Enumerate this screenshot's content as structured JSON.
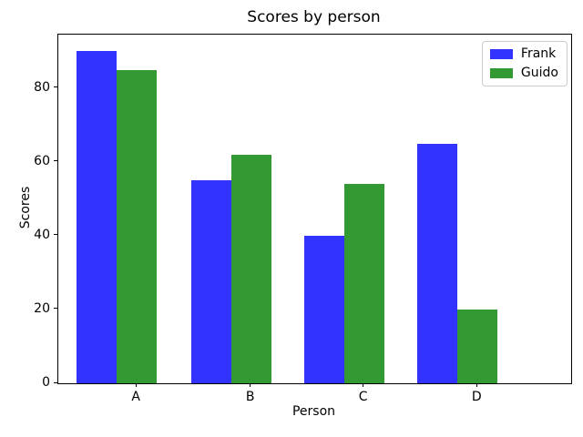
{
  "chart_data": {
    "type": "bar",
    "title": "Scores by person",
    "xlabel": "Person",
    "ylabel": "Scores",
    "categories": [
      "A",
      "B",
      "C",
      "D"
    ],
    "series": [
      {
        "name": "Frank",
        "color": "#3333ff",
        "values": [
          90,
          55,
          40,
          65
        ]
      },
      {
        "name": "Guido",
        "color": "#339933",
        "values": [
          85,
          62,
          54,
          20
        ]
      }
    ],
    "ylim": [
      0,
      94.5
    ],
    "yticks": [
      0,
      20,
      40,
      60,
      80
    ],
    "grid": false,
    "legend_position": "upper right",
    "background": "#ffffff",
    "spine_color": "#000000"
  }
}
